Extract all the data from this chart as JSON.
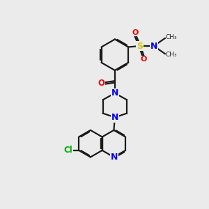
{
  "background_color": "#ebebeb",
  "bond_color": "#1a1a1a",
  "N_color": "#0000ee",
  "O_color": "#ee0000",
  "S_color": "#cccc00",
  "Cl_color": "#00aa00",
  "lw": 1.6,
  "figsize": [
    3.0,
    3.0
  ],
  "dpi": 100,
  "xlim": [
    0,
    10
  ],
  "ylim": [
    0,
    10
  ]
}
